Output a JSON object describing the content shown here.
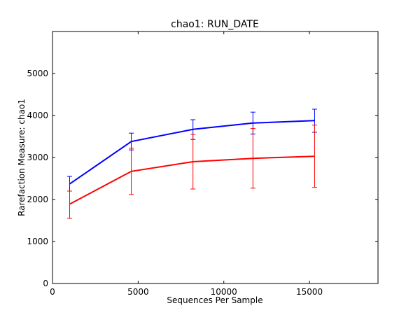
{
  "chart_data": {
    "type": "line",
    "title": "chao1: RUN_DATE",
    "xlabel": "Sequences Per Sample",
    "ylabel": "Rarefaction Measure: chao1",
    "xlim": [
      0,
      19000
    ],
    "ylim": [
      0,
      6000
    ],
    "xticks": [
      0,
      5000,
      10000,
      15000
    ],
    "yticks": [
      0,
      1000,
      2000,
      3000,
      4000,
      5000
    ],
    "grid": false,
    "series": [
      {
        "color": "#0000ff",
        "points": [
          {
            "x": 1000,
            "y": 2370,
            "err_low": 2200,
            "err_high": 2550
          },
          {
            "x": 4600,
            "y": 3380,
            "err_low": 3180,
            "err_high": 3580
          },
          {
            "x": 8200,
            "y": 3670,
            "err_low": 3430,
            "err_high": 3900
          },
          {
            "x": 11700,
            "y": 3820,
            "err_low": 3560,
            "err_high": 4080
          },
          {
            "x": 15300,
            "y": 3880,
            "err_low": 3600,
            "err_high": 4150
          }
        ]
      },
      {
        "color": "#ff0000",
        "points": [
          {
            "x": 1000,
            "y": 1890,
            "err_low": 1550,
            "err_high": 2200
          },
          {
            "x": 4600,
            "y": 2670,
            "err_low": 2120,
            "err_high": 3220
          },
          {
            "x": 8200,
            "y": 2900,
            "err_low": 2250,
            "err_high": 3550
          },
          {
            "x": 11700,
            "y": 2980,
            "err_low": 2270,
            "err_high": 3690
          },
          {
            "x": 15300,
            "y": 3030,
            "err_low": 2290,
            "err_high": 3770
          }
        ]
      }
    ]
  }
}
